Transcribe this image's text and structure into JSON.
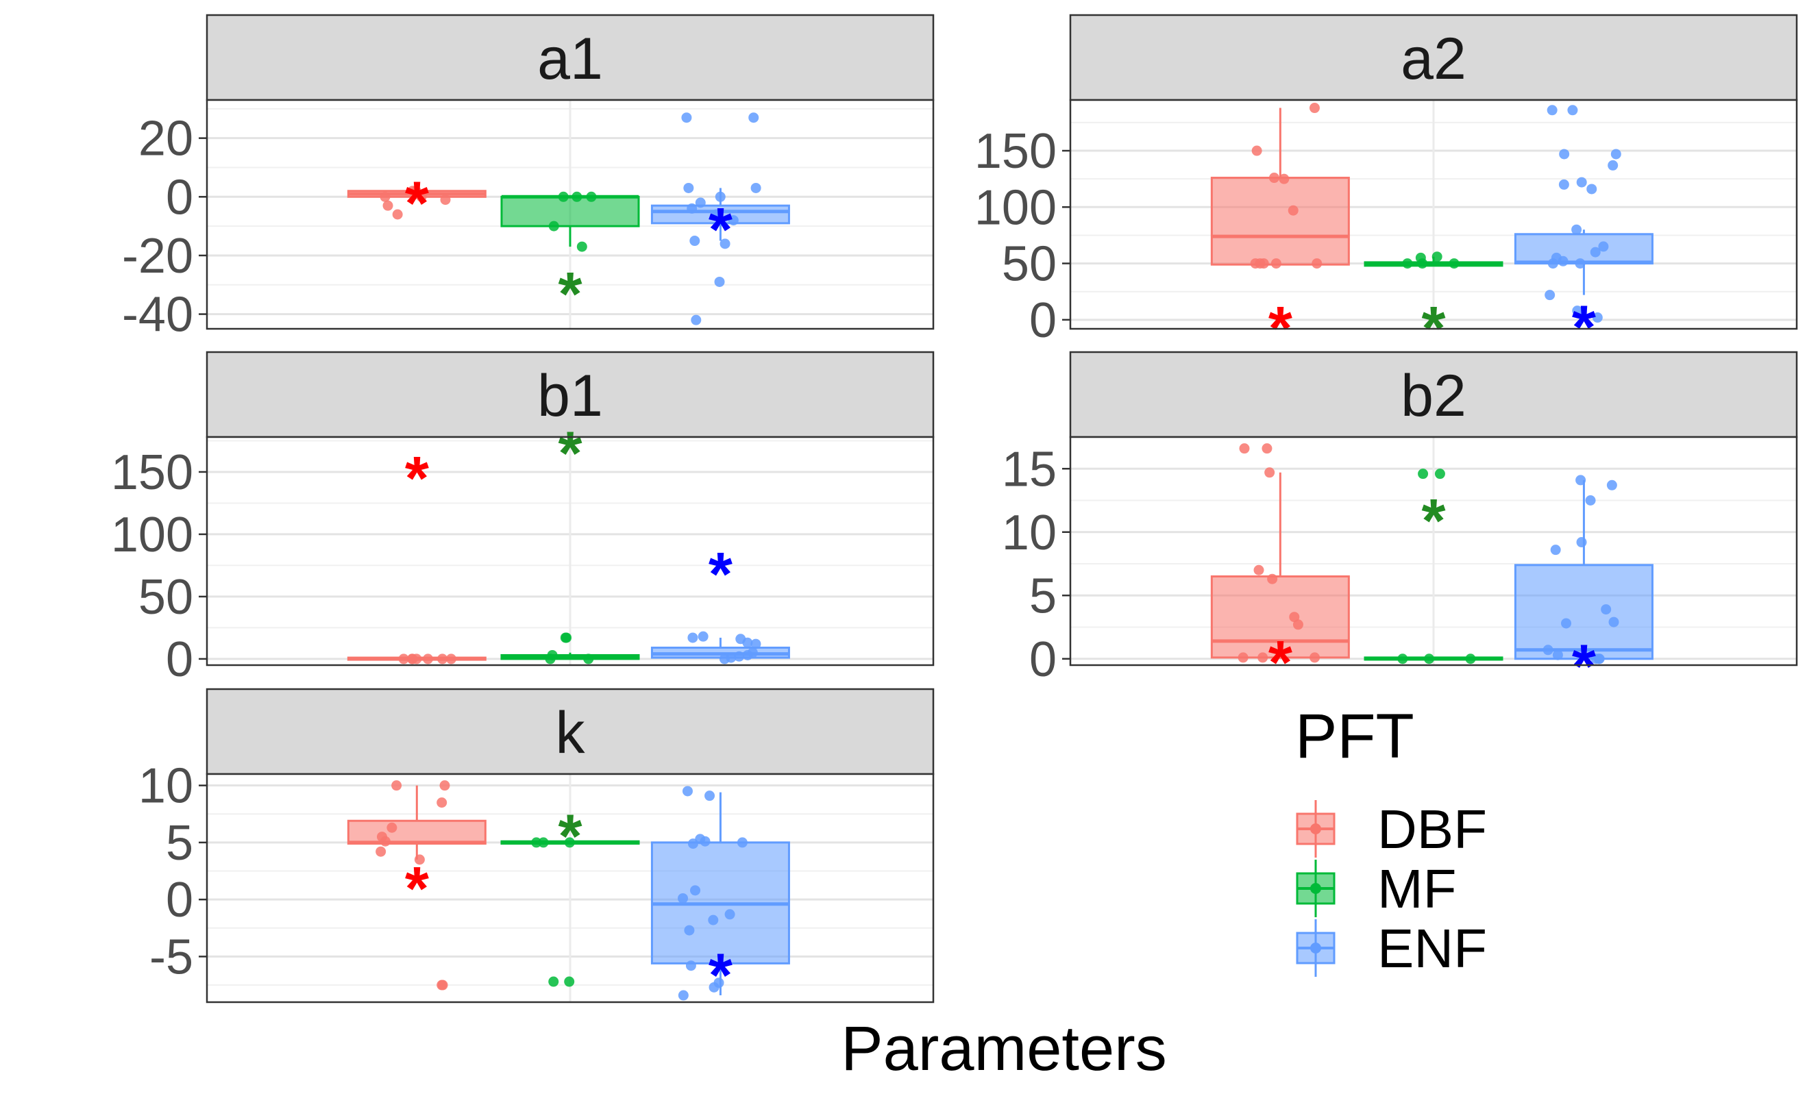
{
  "figure": {
    "xlabel": "Parameters",
    "legend_title": "PFT",
    "legend_position": "bottom-right",
    "grid": true
  },
  "chart_data": {
    "type": "box",
    "groups": [
      "DBF",
      "MF",
      "ENF"
    ],
    "colors": {
      "DBF": "#F8766D",
      "MF": "#00BA38",
      "ENF": "#619CFF"
    },
    "star_colors": {
      "DBF": "#FF0000",
      "MF": "#228B22",
      "ENF": "#0000FF"
    },
    "facets": [
      {
        "name": "a1",
        "ylim": [
          -45,
          33
        ],
        "ticks": [
          20,
          0,
          -20,
          -40
        ],
        "tick_labels": [
          "20",
          "0",
          "-20",
          "-40"
        ],
        "boxes": [
          {
            "group": "DBF",
            "q1": 0,
            "median": 1,
            "q3": 2,
            "wlow": 0,
            "whigh": 2
          },
          {
            "group": "MF",
            "q1": -10,
            "median": 0,
            "q3": 0,
            "wlow": -17,
            "whigh": 0
          },
          {
            "group": "ENF",
            "q1": -9,
            "median": -5,
            "q3": -3,
            "wlow": -15,
            "whigh": 3
          }
        ],
        "points": {
          "DBF": [
            2,
            0,
            -3,
            -6,
            2,
            1,
            0,
            -1
          ],
          "MF": [
            0,
            0,
            -10,
            0,
            -17
          ],
          "ENF": [
            3,
            0,
            -2,
            -8,
            -15,
            -16,
            -29,
            -42,
            27,
            27,
            3,
            -4,
            -6
          ]
        },
        "stars": {
          "DBF": 0,
          "MF": -31,
          "ENF": -9
        }
      },
      {
        "name": "a2",
        "ylim": [
          -8,
          195
        ],
        "ticks": [
          150,
          100,
          50,
          0
        ],
        "tick_labels": [
          "150",
          "100",
          "50",
          "0"
        ],
        "boxes": [
          {
            "group": "DBF",
            "q1": 49,
            "median": 74,
            "q3": 126,
            "wlow": 49,
            "whigh": 188
          },
          {
            "group": "MF",
            "q1": 48,
            "median": 50,
            "q3": 51,
            "wlow": 48,
            "whigh": 56
          },
          {
            "group": "ENF",
            "q1": 50,
            "median": 51,
            "q3": 76,
            "wlow": 22,
            "whigh": 80
          }
        ],
        "points": {
          "DBF": [
            188,
            150,
            126,
            125,
            97,
            50,
            50,
            50,
            50,
            50
          ],
          "MF": [
            56,
            55,
            50,
            50,
            50
          ],
          "ENF": [
            186,
            186,
            147,
            147,
            137,
            122,
            120,
            116,
            80,
            65,
            60,
            55,
            52,
            50,
            50,
            22,
            8,
            2
          ]
        },
        "stars": {
          "DBF": -2,
          "MF": -2,
          "ENF": -1
        }
      },
      {
        "name": "b1",
        "ylim": [
          -5,
          178
        ],
        "ticks": [
          150,
          100,
          50,
          0
        ],
        "tick_labels": [
          "150",
          "100",
          "50",
          "0"
        ],
        "boxes": [
          {
            "group": "DBF",
            "q1": 0,
            "median": 0,
            "q3": 1,
            "wlow": 0,
            "whigh": 1
          },
          {
            "group": "MF",
            "q1": 0,
            "median": 1,
            "q3": 3,
            "wlow": 0,
            "whigh": 5
          },
          {
            "group": "ENF",
            "q1": 1,
            "median": 4,
            "q3": 9,
            "wlow": 0,
            "whigh": 17
          }
        ],
        "points": {
          "DBF": [
            0,
            0,
            0,
            0,
            0,
            0,
            0
          ],
          "MF": [
            17,
            17,
            3,
            0,
            0
          ],
          "ENF": [
            17,
            18,
            16,
            13,
            12,
            5,
            3,
            2,
            1,
            0
          ]
        },
        "stars": {
          "DBF": 150,
          "MF": 170,
          "ENF": 73
        }
      },
      {
        "name": "b2",
        "ylim": [
          -0.5,
          17.5
        ],
        "ticks": [
          15,
          10,
          5,
          0
        ],
        "tick_labels": [
          "15",
          "10",
          "5",
          "0"
        ],
        "boxes": [
          {
            "group": "DBF",
            "q1": 0.1,
            "median": 1.4,
            "q3": 6.5,
            "wlow": 0,
            "whigh": 14.7
          },
          {
            "group": "MF",
            "q1": 0,
            "median": 0,
            "q3": 0.1,
            "wlow": 0,
            "whigh": 0.1
          },
          {
            "group": "ENF",
            "q1": 0,
            "median": 0.7,
            "q3": 7.4,
            "wlow": 0,
            "whigh": 14.1
          }
        ],
        "points": {
          "DBF": [
            16.6,
            16.6,
            14.7,
            7.0,
            6.3,
            3.3,
            2.7,
            0.1,
            0.1,
            0.1
          ],
          "MF": [
            14.6,
            14.6,
            0,
            0,
            0
          ],
          "ENF": [
            14.1,
            13.7,
            12.5,
            9.2,
            8.6,
            3.9,
            2.9,
            2.8,
            0.7,
            0.3,
            0,
            0,
            0
          ]
        },
        "stars": {
          "DBF": 0.2,
          "MF": 11.4,
          "ENF": -0.1
        }
      },
      {
        "name": "k",
        "ylim": [
          -9,
          11
        ],
        "ticks": [
          10,
          5,
          0,
          -5
        ],
        "tick_labels": [
          "10",
          "5",
          "0",
          "-5"
        ],
        "boxes": [
          {
            "group": "DBF",
            "q1": 4.9,
            "median": 5,
            "q3": 6.9,
            "wlow": 3.5,
            "whigh": 10
          },
          {
            "group": "MF",
            "q1": 4.9,
            "median": 5,
            "q3": 5.1,
            "wlow": 4.9,
            "whigh": 5.1
          },
          {
            "group": "ENF",
            "q1": -5.6,
            "median": -0.4,
            "q3": 5.0,
            "wlow": -8.4,
            "whigh": 9.4
          }
        ],
        "points": {
          "DBF": [
            10,
            10,
            8.5,
            6.3,
            5.5,
            5.1,
            4.2,
            3.5,
            -7.5,
            -7.5
          ],
          "MF": [
            5,
            5,
            5,
            -7.2,
            -7.2
          ],
          "ENF": [
            9.5,
            9.1,
            5.3,
            5.1,
            5,
            4.9,
            0.8,
            0.1,
            -1.3,
            -2.7,
            -1.8,
            -5.8,
            -7.3,
            -7.7,
            -8.4
          ]
        },
        "stars": {
          "DBF": 1.5,
          "MF": 6.1,
          "ENF": -6.1
        }
      }
    ]
  }
}
